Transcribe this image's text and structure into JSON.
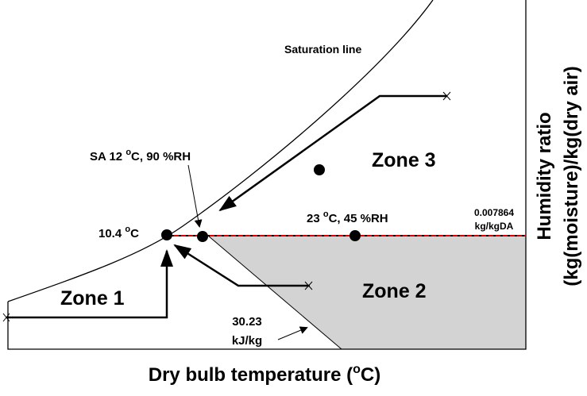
{
  "labels": {
    "saturation": "Saturation line",
    "sa_point": {
      "prefix": "SA 12 ",
      "sup": "o",
      "suffix": "C, 90 %RH"
    },
    "dew_point": {
      "prefix": "10.4 ",
      "sup": "o",
      "suffix": "C"
    },
    "room_point": {
      "prefix": "23 ",
      "sup": "o",
      "suffix": "C, 45 %RH"
    },
    "humidity_value": "0.007864",
    "humidity_unit": "kg/kgDA",
    "enthalpy_value": "30.23",
    "enthalpy_unit": "kJ/kg",
    "zone1": "Zone 1",
    "zone2": "Zone 2",
    "zone3": "Zone 3"
  },
  "axes": {
    "x_label": {
      "prefix": "Dry bulb temperature (",
      "sup": "o",
      "suffix": "C)"
    },
    "y_label_line1": "Humidity ratio",
    "y_label_line2": "(kg(moisture)/kg(dry air)"
  }
}
